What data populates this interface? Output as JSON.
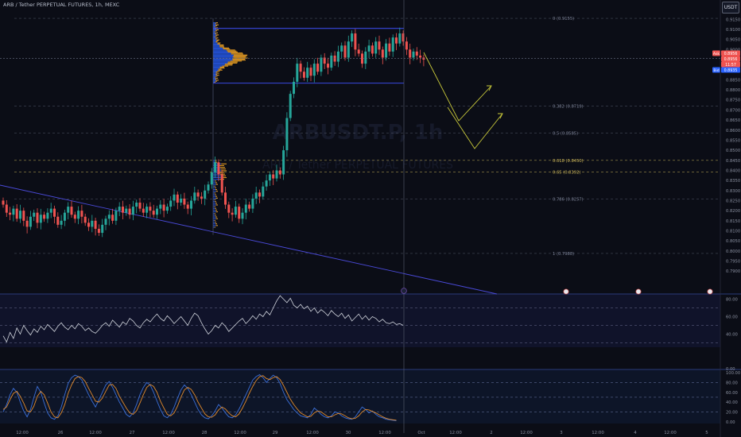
{
  "header": {
    "title": "ARB / Tether PERPETUAL FUTURES, 1h, MEXC",
    "currency": "USDT"
  },
  "colors": {
    "background": "#0b0d16",
    "up": "#26a69a",
    "down": "#ef5350",
    "profile_up": "#2962ff",
    "profile_down": "#f5a623",
    "range": "#3f51ff",
    "fib": "#6b7185",
    "fib_gold": "#c9b458",
    "arrows": "#c9c93a",
    "trendline": "#4a4ad8",
    "rsi": "#d0d4dc",
    "stoch_k": "#3b6fd8",
    "stoch_d": "#e08a2c",
    "ask": "#ef5350",
    "bid": "#2962ff"
  },
  "chart_data": [
    {
      "type": "candlestick",
      "title": "ARB / Tether PERPETUAL FUTURES, 1h, MEXC",
      "ylim": [
        0.7885,
        0.9175
      ],
      "y_ticks": [
        "0.9150",
        "0.9100",
        "0.9050",
        "0.9000",
        "0.8950",
        "0.8900",
        "0.8850",
        "0.8800",
        "0.8750",
        "0.8700",
        "0.8650",
        "0.8600",
        "0.8550",
        "0.8500",
        "0.8450",
        "0.8400",
        "0.8350",
        "0.8300",
        "0.8250",
        "0.8200",
        "0.8150",
        "0.8100",
        "0.8050",
        "0.8000",
        "0.7950",
        "0.7900"
      ],
      "x_ticks": [
        "12:00",
        "26",
        "12:00",
        "27",
        "12:00",
        "28",
        "12:00",
        "29",
        "12:00",
        "30",
        "12:00",
        "Oct",
        "12:00",
        "2",
        "12:00",
        "3",
        "12:00",
        "4",
        "12:00",
        "5"
      ],
      "closes": [
        0.823,
        0.819,
        0.818,
        0.821,
        0.816,
        0.82,
        0.815,
        0.812,
        0.817,
        0.819,
        0.814,
        0.818,
        0.816,
        0.819,
        0.821,
        0.817,
        0.813,
        0.815,
        0.819,
        0.822,
        0.818,
        0.816,
        0.82,
        0.817,
        0.814,
        0.812,
        0.815,
        0.811,
        0.809,
        0.813,
        0.816,
        0.818,
        0.815,
        0.82,
        0.822,
        0.819,
        0.821,
        0.818,
        0.822,
        0.824,
        0.821,
        0.819,
        0.822,
        0.82,
        0.818,
        0.821,
        0.823,
        0.82,
        0.822,
        0.825,
        0.828,
        0.824,
        0.826,
        0.823,
        0.821,
        0.825,
        0.829,
        0.827,
        0.826,
        0.83,
        0.833,
        0.839,
        0.844,
        0.838,
        0.829,
        0.823,
        0.819,
        0.818,
        0.822,
        0.816,
        0.819,
        0.823,
        0.821,
        0.826,
        0.829,
        0.827,
        0.832,
        0.835,
        0.838,
        0.836,
        0.84,
        0.838,
        0.85,
        0.866,
        0.878,
        0.884,
        0.893,
        0.889,
        0.886,
        0.891,
        0.887,
        0.893,
        0.889,
        0.896,
        0.893,
        0.891,
        0.897,
        0.894,
        0.899,
        0.902,
        0.896,
        0.904,
        0.908,
        0.9,
        0.898,
        0.893,
        0.899,
        0.902,
        0.898,
        0.904,
        0.9,
        0.896,
        0.903,
        0.899,
        0.906,
        0.903,
        0.908,
        0.904,
        0.9,
        0.896,
        0.899,
        0.897,
        0.896,
        0.895
      ],
      "range_box": {
        "high": 0.9105,
        "low": 0.8833
      },
      "fib_levels": [
        {
          "label": "0 (0.9155)",
          "value": 0.9155
        },
        {
          "label": "0.382 (0.8719)",
          "value": 0.8719
        },
        {
          "label": "0.5 (0.8585)",
          "value": 0.8585
        },
        {
          "label": "0.618 (0.8450)",
          "value": 0.845
        },
        {
          "label": "0.65 (0.8392)",
          "value": 0.8392
        },
        {
          "label": "0.786 (0.8257)",
          "value": 0.8257
        },
        {
          "label": "1 (0.7988)",
          "value": 0.7988
        }
      ],
      "price_tags": [
        {
          "label": "Ask",
          "value": "0.8956",
          "color": "#ef5350"
        },
        {
          "label": "",
          "value": "0.8956",
          "color": "#ef5350"
        },
        {
          "label": "",
          "value": "11:57",
          "color": "#ef5350"
        },
        {
          "label": "Bid",
          "value": "0.8935",
          "color": "#2962ff"
        }
      ],
      "watermark": [
        "ARBUSDT.P, 1h",
        "ARB / Tether PERPETUAL FUTURES"
      ]
    },
    {
      "type": "line",
      "name": "RSI",
      "ylim": [
        25,
        85
      ],
      "y_ticks": [
        "80.00",
        "60.00",
        "40.00"
      ],
      "bands": [
        70,
        50,
        30
      ],
      "values": [
        38,
        31,
        42,
        35,
        47,
        40,
        50,
        44,
        39,
        46,
        42,
        49,
        45,
        51,
        47,
        43,
        49,
        53,
        48,
        45,
        50,
        46,
        52,
        49,
        44,
        47,
        43,
        41,
        45,
        50,
        53,
        49,
        56,
        52,
        48,
        54,
        51,
        58,
        55,
        50,
        47,
        53,
        57,
        54,
        59,
        63,
        58,
        55,
        61,
        57,
        52,
        56,
        60,
        55,
        50,
        58,
        64,
        61,
        53,
        46,
        40,
        44,
        50,
        47,
        53,
        49,
        43,
        47,
        51,
        55,
        58,
        52,
        56,
        61,
        57,
        63,
        60,
        66,
        62,
        70,
        78,
        84,
        80,
        76,
        81,
        73,
        70,
        74,
        69,
        72,
        66,
        70,
        64,
        68,
        65,
        61,
        67,
        63,
        60,
        64,
        58,
        62,
        55,
        59,
        63,
        57,
        61,
        56,
        60,
        58,
        54,
        57,
        53,
        52,
        54,
        51,
        52,
        50
      ],
      "plot_end_index": 116
    },
    {
      "type": "line",
      "name": "Stoch RSI",
      "ylim": [
        -2,
        105
      ],
      "y_ticks": [
        "100.00",
        "80.00",
        "60.00",
        "40.00",
        "20.00",
        "0.00"
      ],
      "bands": [
        80,
        50,
        20
      ],
      "series": [
        {
          "name": "K",
          "color": "#3b6fd8",
          "values": [
            20,
            35,
            55,
            68,
            60,
            40,
            22,
            10,
            25,
            50,
            72,
            60,
            38,
            18,
            8,
            5,
            12,
            30,
            55,
            78,
            90,
            95,
            92,
            85,
            70,
            55,
            42,
            30,
            45,
            60,
            75,
            82,
            70,
            55,
            40,
            28,
            15,
            10,
            18,
            35,
            55,
            70,
            80,
            75,
            60,
            42,
            25,
            12,
            8,
            15,
            30,
            48,
            65,
            75,
            68,
            55,
            40,
            25,
            14,
            8,
            6,
            12,
            22,
            35,
            28,
            18,
            10,
            8,
            14,
            26,
            40,
            55,
            70,
            85,
            92,
            96,
            90,
            80,
            88,
            95,
            90,
            78,
            60,
            45,
            35,
            25,
            18,
            12,
            10,
            8,
            15,
            28,
            22,
            15,
            10,
            8,
            12,
            20,
            18,
            12,
            8,
            6,
            5,
            10,
            20,
            30,
            25,
            18,
            22,
            15,
            10,
            8,
            5,
            4,
            3,
            2
          ]
        },
        {
          "name": "D",
          "color": "#e08a2c",
          "values": [
            25,
            30,
            45,
            58,
            62,
            52,
            38,
            22,
            20,
            32,
            52,
            62,
            55,
            38,
            20,
            10,
            8,
            18,
            35,
            58,
            75,
            88,
            92,
            90,
            82,
            68,
            55,
            42,
            40,
            48,
            62,
            75,
            76,
            68,
            52,
            40,
            28,
            18,
            15,
            22,
            38,
            55,
            70,
            76,
            72,
            60,
            42,
            28,
            15,
            12,
            18,
            32,
            50,
            65,
            70,
            66,
            55,
            40,
            28,
            16,
            10,
            9,
            14,
            24,
            30,
            26,
            18,
            12,
            10,
            16,
            28,
            42,
            58,
            72,
            84,
            92,
            94,
            88,
            86,
            90,
            92,
            86,
            74,
            60,
            46,
            35,
            26,
            18,
            14,
            10,
            11,
            18,
            22,
            20,
            15,
            10,
            10,
            14,
            17,
            16,
            12,
            8,
            6,
            7,
            12,
            20,
            25,
            24,
            21,
            18,
            14,
            10,
            7,
            5,
            4,
            3
          ]
        }
      ],
      "plot_end_index": 116
    }
  ]
}
